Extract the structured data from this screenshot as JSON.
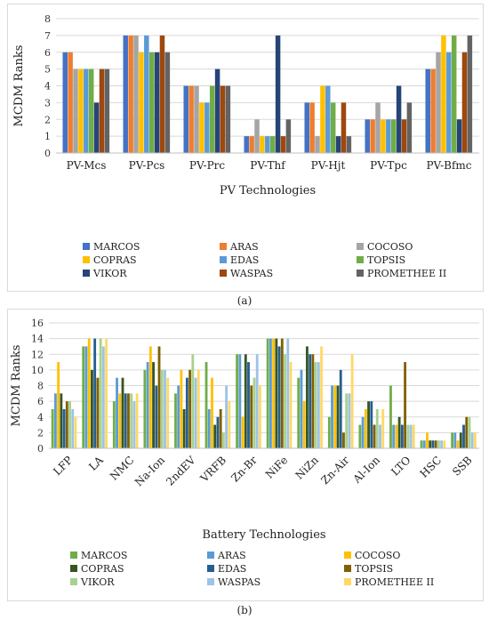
{
  "figure_a": {
    "caption": "(a)",
    "chart_data": {
      "type": "bar",
      "xlabel": "PV Technologies",
      "ylabel": "MCDM Ranks",
      "ylim": [
        0,
        8
      ],
      "yticks": [
        0,
        1,
        2,
        3,
        4,
        5,
        6,
        7,
        8
      ],
      "grid": true,
      "legend_position": "bottom",
      "categories": [
        "PV-Mcs",
        "PV-Pcs",
        "PV-Prc",
        "PV-Thf",
        "PV-Hjt",
        "PV-Tpc",
        "PV-Bfmc"
      ],
      "series": [
        {
          "name": "MARCOS",
          "color": "#4472C4",
          "values": [
            6,
            7,
            4,
            1,
            3,
            2,
            5
          ]
        },
        {
          "name": "ARAS",
          "color": "#ED7D31",
          "values": [
            6,
            7,
            4,
            1,
            3,
            2,
            5
          ]
        },
        {
          "name": "COCOSO",
          "color": "#A5A5A5",
          "values": [
            5,
            7,
            4,
            2,
            1,
            3,
            6
          ]
        },
        {
          "name": "COPRAS",
          "color": "#FFC000",
          "values": [
            5,
            6,
            3,
            1,
            4,
            2,
            7
          ]
        },
        {
          "name": "EDAS",
          "color": "#5B9BD5",
          "values": [
            5,
            7,
            3,
            1,
            4,
            2,
            6
          ]
        },
        {
          "name": "TOPSIS",
          "color": "#70AD47",
          "values": [
            5,
            6,
            4,
            1,
            3,
            2,
            7
          ]
        },
        {
          "name": "VIKOR",
          "color": "#264478",
          "values": [
            3,
            6,
            5,
            7,
            1,
            4,
            2
          ]
        },
        {
          "name": "WASPAS",
          "color": "#9E480E",
          "values": [
            5,
            7,
            4,
            1,
            3,
            2,
            6
          ]
        },
        {
          "name": "PROMETHEE II",
          "color": "#636363",
          "values": [
            5,
            6,
            4,
            2,
            1,
            3,
            7
          ]
        }
      ]
    }
  },
  "figure_b": {
    "caption": "(b)",
    "chart_data": {
      "type": "bar",
      "xlabel": "Battery Technologies",
      "ylabel": "MCDM Ranks",
      "ylim": [
        0,
        16
      ],
      "yticks": [
        0,
        2,
        4,
        6,
        8,
        10,
        12,
        14,
        16
      ],
      "grid": true,
      "legend_position": "bottom",
      "categories": [
        "LFP",
        "LA",
        "NMC",
        "Na-Ion",
        "2ndEV",
        "VRFB",
        "Zn-Br",
        "NiFe",
        "NiZn",
        "Zn-Air",
        "Al-Ion",
        "LTO",
        "HSC",
        "SSB"
      ],
      "series": [
        {
          "name": "MARCOS",
          "color": "#70AD47",
          "values": [
            5,
            13,
            6,
            10,
            7,
            11,
            12,
            14,
            9,
            4,
            3,
            8,
            1,
            2
          ]
        },
        {
          "name": "ARAS",
          "color": "#5B9BD5",
          "values": [
            7,
            13,
            9,
            11,
            8,
            5,
            12,
            14,
            10,
            8,
            4,
            3,
            1,
            2
          ]
        },
        {
          "name": "COCOSO",
          "color": "#FFC000",
          "values": [
            11,
            14,
            7,
            13,
            10,
            9,
            4,
            14,
            6,
            8,
            5,
            3,
            2,
            1
          ]
        },
        {
          "name": "COPRAS",
          "color": "#375623",
          "values": [
            7,
            10,
            9,
            11,
            5,
            3,
            12,
            14,
            13,
            8,
            6,
            4,
            1,
            2
          ]
        },
        {
          "name": "EDAS",
          "color": "#255E91",
          "values": [
            5,
            14,
            7,
            8,
            9,
            4,
            11,
            13,
            12,
            10,
            6,
            3,
            1,
            3
          ]
        },
        {
          "name": "TOPSIS",
          "color": "#806000",
          "values": [
            6,
            9,
            7,
            13,
            10,
            5,
            8,
            14,
            12,
            2,
            3,
            11,
            1,
            4
          ]
        },
        {
          "name": "VIKOR",
          "color": "#A9D18E",
          "values": [
            6,
            14,
            7,
            10,
            12,
            2,
            9,
            12,
            11,
            7,
            5,
            3,
            1,
            4
          ]
        },
        {
          "name": "WASPAS",
          "color": "#9DC3E6",
          "values": [
            5,
            13,
            6,
            10,
            9,
            8,
            12,
            14,
            11,
            7,
            3,
            3,
            1,
            2
          ]
        },
        {
          "name": "PROMETHEE II",
          "color": "#FFD966",
          "values": [
            4,
            14,
            7,
            9,
            10,
            6,
            8,
            11,
            13,
            12,
            5,
            3,
            1,
            2
          ]
        }
      ]
    }
  }
}
